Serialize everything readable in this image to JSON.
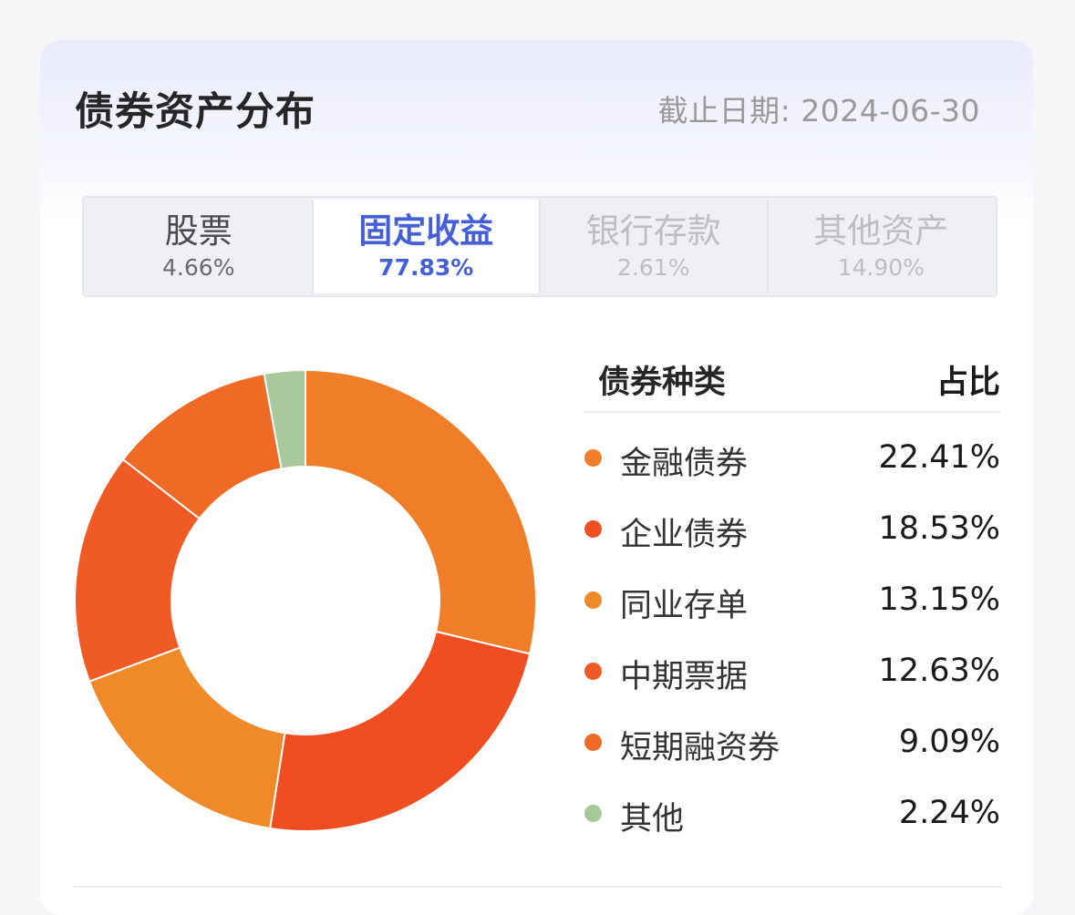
{
  "header": {
    "title": "债券资产分布",
    "date": "截止日期: 2024-06-30"
  },
  "tabs": [
    {
      "label": "股票",
      "value": "4.66%"
    },
    {
      "label": "固定收益",
      "value": "77.83%"
    },
    {
      "label": "银行存款",
      "value": "2.61%"
    },
    {
      "label": "其他资产",
      "value": "14.90%"
    }
  ],
  "active_tab": "固定收益",
  "legend": {
    "header_name": "债券种类",
    "header_ratio": "占比"
  },
  "colors": {
    "accent": "#4560d6",
    "orange": "#f07d27",
    "red_orange": "#f04e20",
    "light_orange": "#f08a28",
    "deep_orange": "#f05a24",
    "mid_orange": "#ef6a25",
    "green": "#a6c89a"
  },
  "chart_data": {
    "type": "pie",
    "categories": [
      "金融债券",
      "企业债券",
      "同业存单",
      "中期票据",
      "短期融资券",
      "其他"
    ],
    "labels": [
      "22.41%",
      "18.53%",
      "13.15%",
      "12.63%",
      "9.09%",
      "2.24%"
    ],
    "values": [
      22.41,
      18.53,
      13.15,
      12.63,
      9.09,
      2.24
    ],
    "colors": [
      "#f07d27",
      "#f04e20",
      "#f08a28",
      "#f05a24",
      "#ef6a25",
      "#a6c89a"
    ],
    "donut": true
  }
}
